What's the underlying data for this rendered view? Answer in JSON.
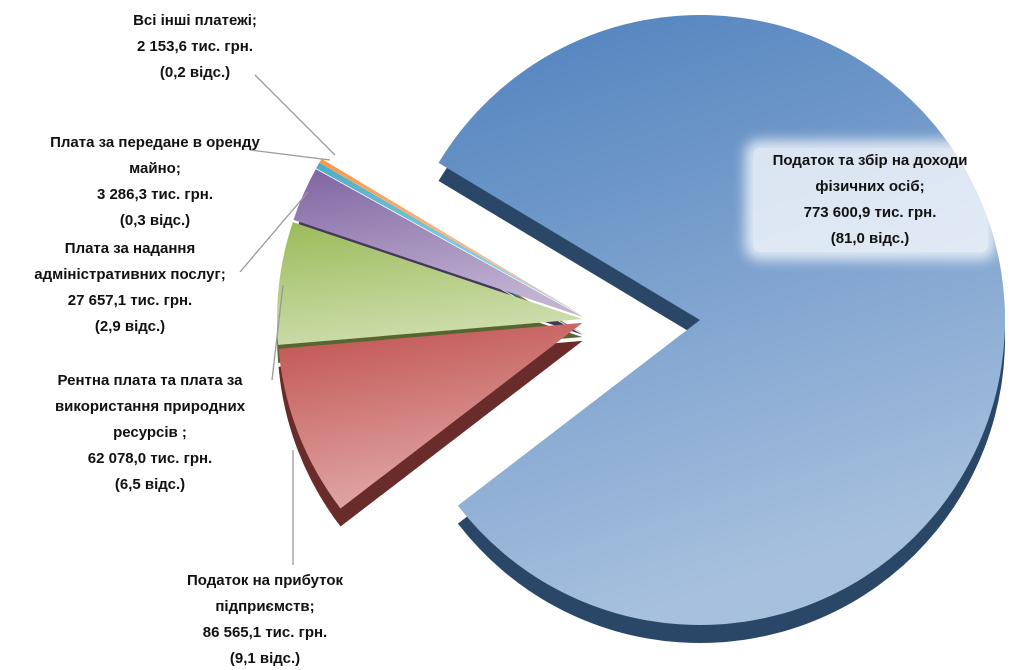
{
  "chart_data": {
    "type": "pie",
    "categories": [
      "Податок та збір на доходи фізичних осіб;",
      "Податок на прибуток підприємств;",
      "Рентна плата та плата за використання природних ресурсів ;",
      "Плата за надання адміністративних послуг;",
      "Плата за передане в оренду майно;",
      "Всі інші платежі;"
    ],
    "values": [
      773600.9,
      86565.1,
      62078.0,
      27657.1,
      3286.3,
      2153.6
    ],
    "value_labels": [
      "773 600,9 тис. грн.",
      "86 565,1 тис. грн.",
      "62 078,0 тис. грн.",
      "27 657,1 тис. грн.",
      "3 286,3 тис. грн.",
      "2 153,6 тис. грн."
    ],
    "percents": [
      81.0,
      9.1,
      6.5,
      2.9,
      0.3,
      0.2
    ],
    "percent_labels": [
      "(81,0 відс.)",
      "(9,1 відс.)",
      "(6,5 відс.)",
      "(2,9 відс.)",
      "(0,3 відс.)",
      "(0,2 відс.)"
    ],
    "colors": [
      "#4f81bd",
      "#c0504d",
      "#9bbb59",
      "#8064a2",
      "#4bacc6",
      "#f79646"
    ]
  }
}
